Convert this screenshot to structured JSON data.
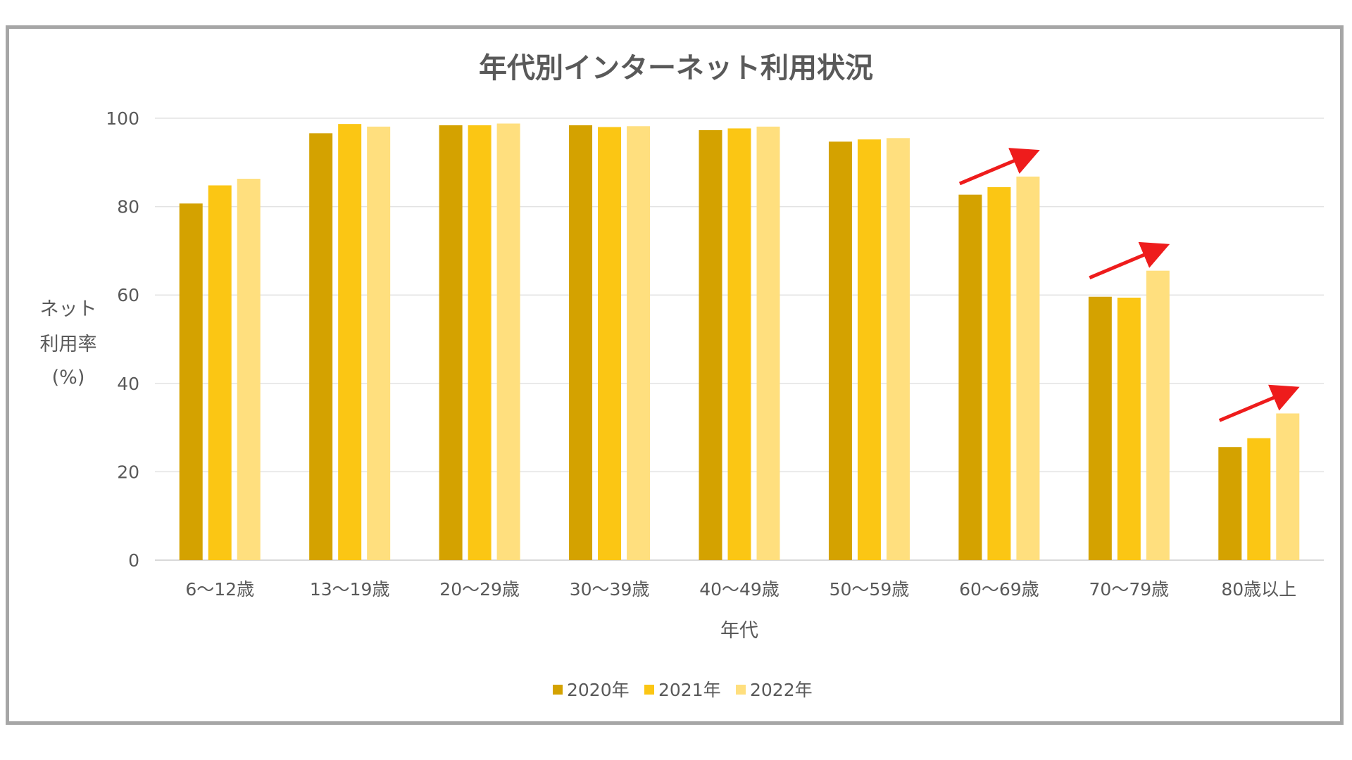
{
  "chart_data": {
    "type": "bar",
    "title": "年代別インターネット利用状況",
    "xlabel": "年代",
    "ylabel_lines": [
      "ネット",
      "利用率",
      "(%)"
    ],
    "ylim": [
      0,
      100
    ],
    "yticks": [
      0,
      20,
      40,
      60,
      80,
      100
    ],
    "grid": true,
    "legend_position": "bottom",
    "categories": [
      "6～12歳",
      "13～19歳",
      "20～29歳",
      "30～39歳",
      "40～49歳",
      "50～59歳",
      "60～69歳",
      "70～79歳",
      "80歳以上"
    ],
    "series": [
      {
        "name": "2020年",
        "color": "#d4a200",
        "values": [
          80.7,
          96.6,
          98.4,
          98.4,
          97.3,
          94.7,
          82.7,
          59.6,
          25.6
        ]
      },
      {
        "name": "2021年",
        "color": "#fbc614",
        "values": [
          84.8,
          98.7,
          98.4,
          98.0,
          97.7,
          95.2,
          84.4,
          59.4,
          27.6
        ]
      },
      {
        "name": "2022年",
        "color": "#ffdf7e",
        "values": [
          86.3,
          98.1,
          98.8,
          98.2,
          98.1,
          95.5,
          86.8,
          65.5,
          33.2
        ]
      }
    ],
    "annotations": [
      {
        "type": "arrow",
        "category": "60～69歳",
        "color": "#ee1c1c",
        "meaning": "increasing trend"
      },
      {
        "type": "arrow",
        "category": "70～79歳",
        "color": "#ee1c1c",
        "meaning": "increasing trend"
      },
      {
        "type": "arrow",
        "category": "80歳以上",
        "color": "#ee1c1c",
        "meaning": "increasing trend"
      }
    ]
  }
}
